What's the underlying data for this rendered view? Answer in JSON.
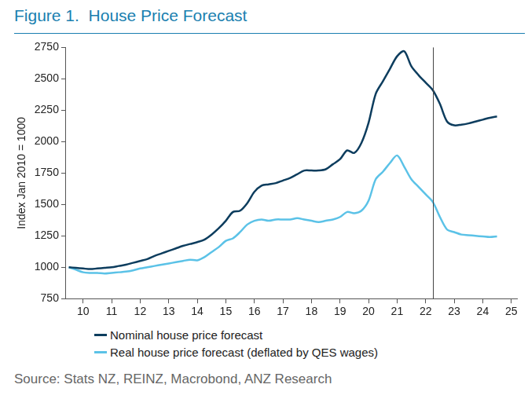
{
  "chart_data": {
    "type": "line",
    "title": "Figure 1.  House Price Forecast",
    "y_label": "Index Jan 2010 = 1000",
    "source": "Source: Stats NZ, REINZ, Macrobond, ANZ Research",
    "x": [
      10,
      10.25,
      10.5,
      10.75,
      11,
      11.25,
      11.5,
      11.75,
      12,
      12.25,
      12.5,
      12.75,
      13,
      13.25,
      13.5,
      13.75,
      14,
      14.25,
      14.5,
      14.75,
      15,
      15.25,
      15.5,
      15.75,
      16,
      16.25,
      16.5,
      16.75,
      17,
      17.25,
      17.5,
      17.75,
      18,
      18.25,
      18.5,
      18.75,
      19,
      19.25,
      19.5,
      19.75,
      20,
      20.25,
      20.5,
      20.75,
      21,
      21.25,
      21.5,
      21.75,
      22,
      22.25,
      22.5,
      22.75,
      23,
      23.25,
      23.5,
      23.75,
      24,
      24.25,
      24.5,
      24.75,
      25
    ],
    "series": [
      {
        "name": "Nominal house price forecast",
        "color": "#0d3d5e",
        "values": [
          1000,
          995,
          990,
          985,
          990,
          995,
          1000,
          1010,
          1020,
          1035,
          1050,
          1065,
          1090,
          1110,
          1130,
          1150,
          1170,
          1185,
          1200,
          1220,
          1260,
          1310,
          1370,
          1440,
          1450,
          1510,
          1600,
          1650,
          1660,
          1670,
          1690,
          1710,
          1740,
          1770,
          1770,
          1770,
          1780,
          1820,
          1860,
          1930,
          1910,
          1990,
          2150,
          2380,
          2480,
          2580,
          2680,
          2720,
          2600,
          2530,
          2470,
          2410,
          2300,
          2160,
          2130,
          2135,
          2145,
          2160,
          2175,
          2190,
          2200
        ]
      },
      {
        "name": "Real house price forecast (deflated by QES wages)",
        "color": "#5bc2e7",
        "values": [
          1000,
          980,
          960,
          955,
          955,
          950,
          955,
          960,
          965,
          975,
          990,
          1000,
          1010,
          1020,
          1030,
          1040,
          1050,
          1060,
          1055,
          1080,
          1120,
          1160,
          1210,
          1230,
          1280,
          1340,
          1370,
          1380,
          1370,
          1380,
          1380,
          1380,
          1390,
          1380,
          1370,
          1360,
          1370,
          1380,
          1400,
          1440,
          1430,
          1450,
          1530,
          1700,
          1760,
          1830,
          1890,
          1800,
          1700,
          1640,
          1580,
          1520,
          1400,
          1300,
          1280,
          1260,
          1255,
          1250,
          1245,
          1240,
          1245
        ]
      }
    ],
    "forecast_line_x": 22.75,
    "xlim": [
      9.9,
      25.7
    ],
    "xticks": [
      {
        "value": 10.5,
        "label": "10"
      },
      {
        "value": 11.5,
        "label": "11"
      },
      {
        "value": 12.5,
        "label": "12"
      },
      {
        "value": 13.5,
        "label": "13"
      },
      {
        "value": 14.5,
        "label": "14"
      },
      {
        "value": 15.5,
        "label": "15"
      },
      {
        "value": 16.5,
        "label": "16"
      },
      {
        "value": 17.5,
        "label": "17"
      },
      {
        "value": 18.5,
        "label": "18"
      },
      {
        "value": 19.5,
        "label": "19"
      },
      {
        "value": 20.5,
        "label": "20"
      },
      {
        "value": 21.5,
        "label": "21"
      },
      {
        "value": 22.5,
        "label": "22"
      },
      {
        "value": 23.5,
        "label": "23"
      },
      {
        "value": 24.5,
        "label": "24"
      },
      {
        "value": 25.5,
        "label": "25"
      }
    ],
    "ylim": [
      750,
      2750
    ],
    "yticks": [
      750,
      1000,
      1250,
      1500,
      1750,
      2000,
      2250,
      2500,
      2750
    ],
    "grid": false,
    "legend": "bottom"
  }
}
